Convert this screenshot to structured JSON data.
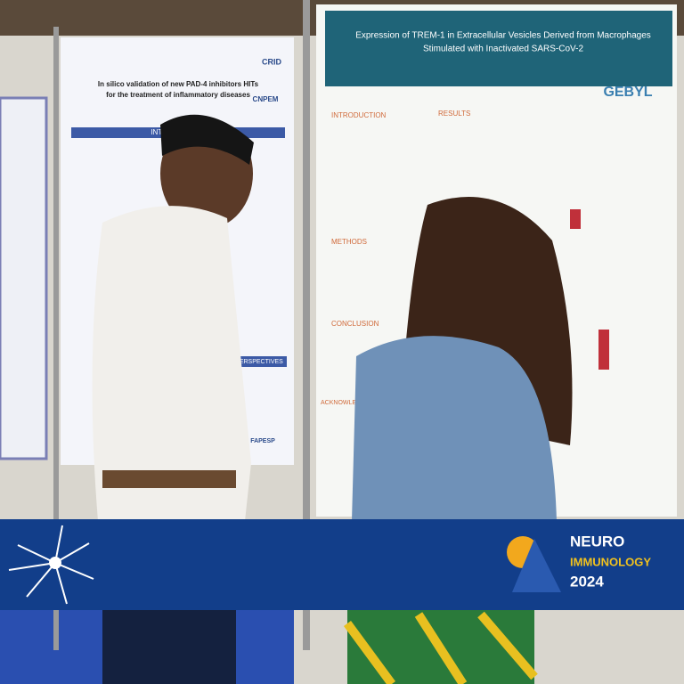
{
  "left_poster": {
    "title_lines": [
      "In silico validation of new PAD-4 inhibitors HITs",
      "for the treatment of inflammatory diseases"
    ],
    "logos": [
      "CRID",
      "CNPEM",
      "FAPESP"
    ],
    "sections": [
      "INTRODUCTION",
      "PERSPECTIVES"
    ]
  },
  "right_poster": {
    "title_lines": [
      "Expression of TREM-1 in Extracellular Vesicles Derived from Macrophages",
      "Stimulated with Inactivated SARS-CoV-2"
    ],
    "logo": "GEBYL",
    "sections": [
      "INTRODUCTION",
      "RESULTS",
      "METHODS",
      "CONCLUSION",
      "ACKNOWLEDGMENTS"
    ]
  },
  "banner": {
    "line1": "NEURO",
    "line2": "IMMUNOLOGY",
    "year": "2024"
  }
}
